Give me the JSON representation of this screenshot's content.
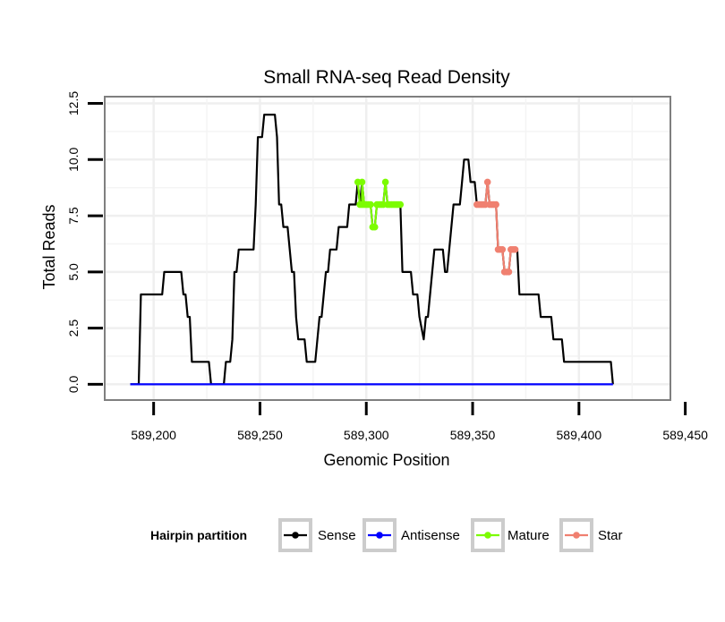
{
  "chart_data": {
    "type": "line",
    "title": "Small RNA-seq Read Density",
    "xlabel": "Genomic Position",
    "ylabel": "Total Reads",
    "xlim": [
      589177,
      589443
    ],
    "ylim": [
      -0.7,
      12.8
    ],
    "x_ticks": [
      589200,
      589250,
      589300,
      589350,
      589400,
      589450
    ],
    "x_tick_labels": [
      "589,200",
      "589,250",
      "589,300",
      "589,350",
      "589,400",
      "589,450"
    ],
    "y_ticks": [
      0,
      2.5,
      5,
      7.5,
      10,
      12.5
    ],
    "y_tick_labels": [
      "0.0",
      "2.5",
      "5.0",
      "7.5",
      "10.0",
      "12.5"
    ],
    "grid": true,
    "legend_position": "bottom",
    "legend_title": "Hairpin partition",
    "series": [
      {
        "name": "Sense",
        "color": "#000000",
        "markers": false,
        "points": [
          [
            589189,
            0
          ],
          [
            589193,
            0
          ],
          [
            589194,
            4
          ],
          [
            589204,
            4
          ],
          [
            589205,
            5
          ],
          [
            589213,
            5
          ],
          [
            589214,
            4
          ],
          [
            589215,
            4
          ],
          [
            589216,
            3
          ],
          [
            589217,
            3
          ],
          [
            589218,
            1
          ],
          [
            589226,
            1
          ],
          [
            589227,
            0
          ],
          [
            589233,
            0
          ],
          [
            589234,
            1
          ],
          [
            589236,
            1
          ],
          [
            589237,
            2
          ],
          [
            589238,
            5
          ],
          [
            589239,
            5
          ],
          [
            589240,
            6
          ],
          [
            589247,
            6
          ],
          [
            589248,
            8
          ],
          [
            589249,
            11
          ],
          [
            589251,
            11
          ],
          [
            589252,
            12
          ],
          [
            589257,
            12
          ],
          [
            589258,
            11
          ],
          [
            589259,
            8
          ],
          [
            589260,
            8
          ],
          [
            589261,
            7
          ],
          [
            589263,
            7
          ],
          [
            589264,
            6
          ],
          [
            589265,
            5
          ],
          [
            589266,
            5
          ],
          [
            589267,
            3
          ],
          [
            589268,
            2
          ],
          [
            589271,
            2
          ],
          [
            589272,
            1
          ],
          [
            589276,
            1
          ],
          [
            589277,
            2
          ],
          [
            589278,
            3
          ],
          [
            589279,
            3
          ],
          [
            589280,
            4
          ],
          [
            589281,
            5
          ],
          [
            589282,
            5
          ],
          [
            589283,
            6
          ],
          [
            589286,
            6
          ],
          [
            589287,
            7
          ],
          [
            589291,
            7
          ],
          [
            589292,
            8
          ],
          [
            589295,
            8
          ],
          [
            589296,
            9
          ],
          [
            589297,
            8
          ],
          [
            589298,
            9
          ],
          [
            589299,
            8
          ],
          [
            589302,
            8
          ],
          [
            589303,
            7
          ],
          [
            589304,
            7
          ],
          [
            589305,
            8
          ],
          [
            589308,
            8
          ],
          [
            589309,
            9
          ],
          [
            589310,
            8
          ],
          [
            589316,
            8
          ],
          [
            589317,
            5
          ],
          [
            589321,
            5
          ],
          [
            589322,
            4
          ],
          [
            589324,
            4
          ],
          [
            589325,
            3
          ],
          [
            589327,
            2
          ],
          [
            589328,
            3
          ],
          [
            589329,
            3
          ],
          [
            589330,
            4
          ],
          [
            589332,
            6
          ],
          [
            589336,
            6
          ],
          [
            589337,
            5
          ],
          [
            589338,
            5
          ],
          [
            589339,
            6
          ],
          [
            589340,
            7
          ],
          [
            589341,
            8
          ],
          [
            589344,
            8
          ],
          [
            589345,
            9
          ],
          [
            589346,
            10
          ],
          [
            589348,
            10
          ],
          [
            589349,
            9
          ],
          [
            589351,
            9
          ],
          [
            589352,
            8
          ],
          [
            589356,
            8
          ],
          [
            589357,
            9
          ],
          [
            589358,
            8
          ],
          [
            589361,
            8
          ],
          [
            589362,
            6
          ],
          [
            589364,
            6
          ],
          [
            589365,
            5
          ],
          [
            589367,
            5
          ],
          [
            589368,
            6
          ],
          [
            589371,
            6
          ],
          [
            589372,
            4
          ],
          [
            589381,
            4
          ],
          [
            589382,
            3
          ],
          [
            589387,
            3
          ],
          [
            589388,
            2
          ],
          [
            589392,
            2
          ],
          [
            589393,
            1
          ],
          [
            589415,
            1
          ],
          [
            589416,
            0
          ]
        ]
      },
      {
        "name": "Antisense",
        "color": "#0000ff",
        "markers": false,
        "points": [
          [
            589189,
            0
          ],
          [
            589416,
            0
          ]
        ]
      },
      {
        "name": "Mature",
        "color": "#7cfc00",
        "markers": true,
        "points": [
          [
            589296,
            9
          ],
          [
            589297,
            8
          ],
          [
            589298,
            8
          ],
          [
            589298,
            9
          ],
          [
            589299,
            8
          ],
          [
            589300,
            8
          ],
          [
            589301,
            8
          ],
          [
            589302,
            8
          ],
          [
            589303,
            7
          ],
          [
            589304,
            7
          ],
          [
            589305,
            8
          ],
          [
            589306,
            8
          ],
          [
            589307,
            8
          ],
          [
            589308,
            8
          ],
          [
            589309,
            9
          ],
          [
            589310,
            8
          ],
          [
            589311,
            8
          ],
          [
            589312,
            8
          ],
          [
            589313,
            8
          ],
          [
            589314,
            8
          ],
          [
            589315,
            8
          ],
          [
            589316,
            8
          ]
        ]
      },
      {
        "name": "Star",
        "color": "#f08070",
        "markers": true,
        "points": [
          [
            589352,
            8
          ],
          [
            589353,
            8
          ],
          [
            589354,
            8
          ],
          [
            589355,
            8
          ],
          [
            589356,
            8
          ],
          [
            589357,
            9
          ],
          [
            589358,
            8
          ],
          [
            589359,
            8
          ],
          [
            589360,
            8
          ],
          [
            589361,
            8
          ],
          [
            589362,
            6
          ],
          [
            589363,
            6
          ],
          [
            589364,
            6
          ],
          [
            589365,
            5
          ],
          [
            589366,
            5
          ],
          [
            589367,
            5
          ],
          [
            589368,
            6
          ],
          [
            589369,
            6
          ],
          [
            589370,
            6
          ]
        ]
      }
    ]
  }
}
